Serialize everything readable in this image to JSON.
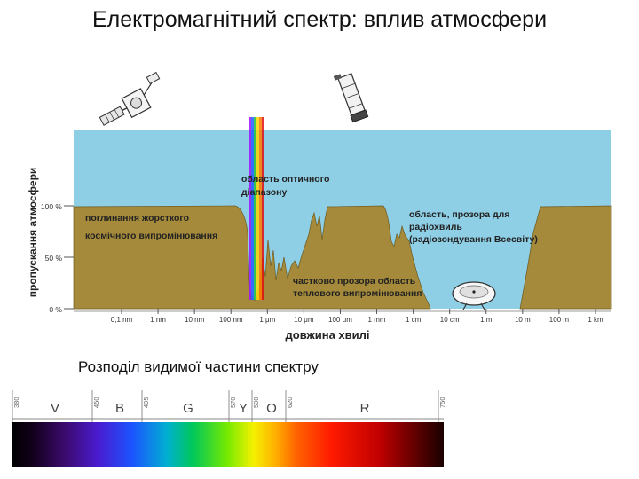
{
  "title": "Електромагнітний спектр: вплив атмосфери",
  "y_axis": {
    "label": "пропускання атмосфери",
    "ticks": [
      "100 %",
      "50 %",
      "0 %"
    ]
  },
  "x_axis": {
    "label": "довжина хвилі",
    "ticks": [
      "0,1 nm",
      "1 nm",
      "10 nm",
      "100 nm",
      "1 μm",
      "10 μm",
      "100 μm",
      "1 mm",
      "1 cm",
      "10 cm",
      "1 m",
      "10 m",
      "100 m",
      "1 km"
    ]
  },
  "annotations": {
    "optical_window": [
      "область оптичного",
      "діапазону"
    ],
    "hard_radiation": [
      "поглинання жорсткого",
      "космічного випромінювання"
    ],
    "radio_window": [
      "область, прозора для",
      "радіохвиль",
      "(радіозондування Всесвіту)"
    ],
    "thermal": [
      "частково прозора область",
      "теплового випромінювання"
    ]
  },
  "visible_section": {
    "caption": "Розподіл видимої частини спектру",
    "bands": [
      "V",
      "B",
      "G",
      "Y",
      "O",
      "R"
    ],
    "wavelength_marks": [
      "380",
      "450",
      "495",
      "570",
      "590",
      "620",
      "750"
    ]
  },
  "colors": {
    "sky": "#8ecfe6",
    "atmosphere": "#a48a3a",
    "text": "#111111"
  },
  "icons": [
    "satellite-icon",
    "space-telescope-icon",
    "radio-telescope-icon"
  ]
}
